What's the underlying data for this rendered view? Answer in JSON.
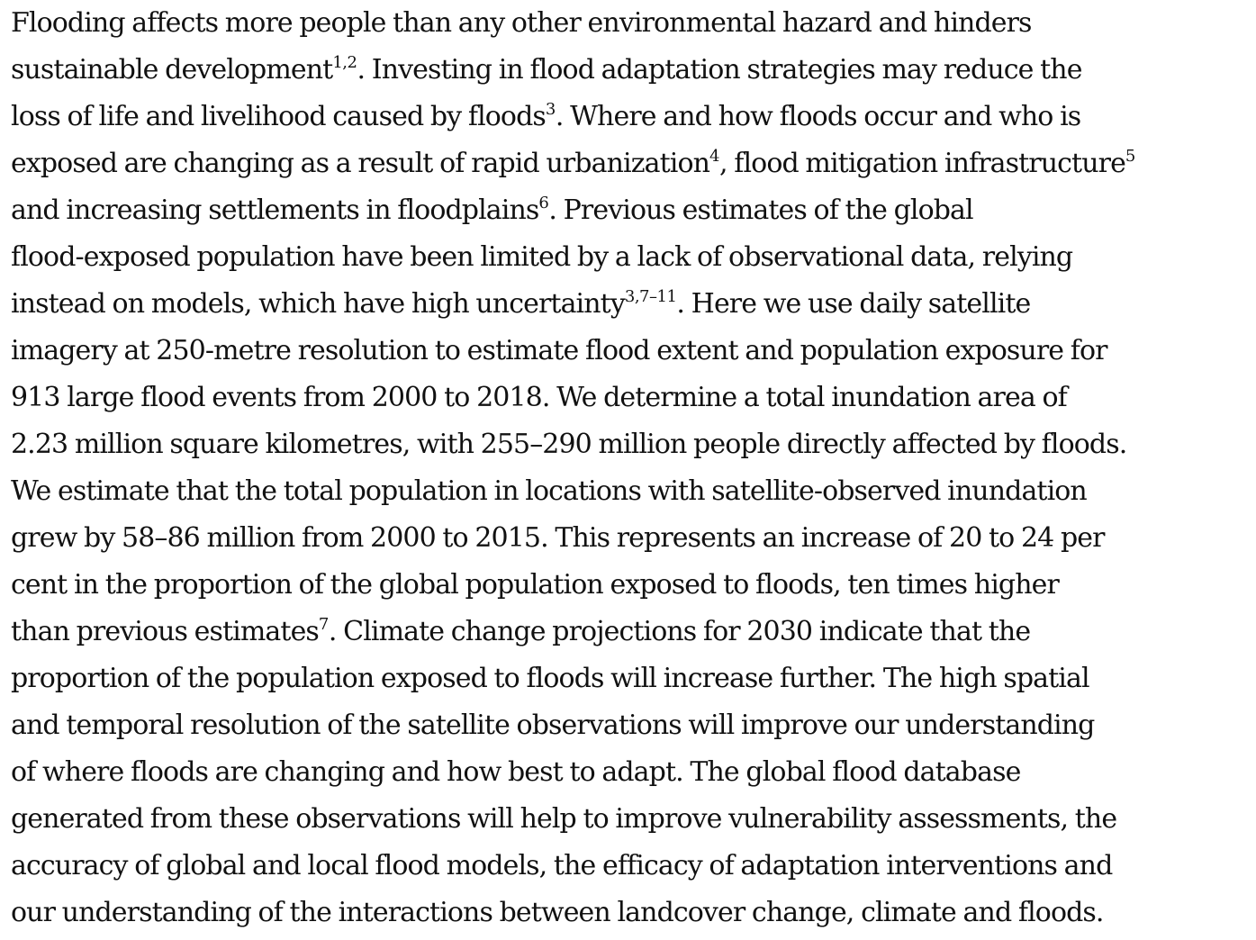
{
  "abstract": {
    "lines": [
      {
        "text": "Flooding affects more people than any other environmental hazard and hinders"
      },
      {
        "text": "sustainable development",
        "sup": "1,2",
        "after": ". Investing in flood adaptation strategies may reduce the"
      },
      {
        "text": "loss of life and livelihood caused by floods",
        "sup": "3",
        "after": ". Where and how floods occur and who is"
      },
      {
        "text": "exposed are changing as a result of rapid urbanization",
        "sup": "4",
        "after": ", flood mitigation infrastructure",
        "sup2": "5"
      },
      {
        "text": "and increasing settlements in floodplains",
        "sup": "6",
        "after": ". Previous estimates of the global"
      },
      {
        "text": "flood-exposed population have been limited by a lack of observational data, relying"
      },
      {
        "text": "instead on models, which have high uncertainty",
        "sup": "3,7–11",
        "after": ". Here we use daily satellite"
      },
      {
        "text": "imagery at 250-metre resolution to estimate flood extent and population exposure for"
      },
      {
        "text": "913 large flood events from 2000 to 2018. We determine a total inundation area of"
      },
      {
        "text": "2.23 million square kilometres, with 255–290 million people directly affected by floods."
      },
      {
        "text": "We estimate that the total population in locations with satellite-observed inundation"
      },
      {
        "text": "grew by 58–86 million from 2000 to 2015. This represents an increase of 20 to 24 per"
      },
      {
        "text": "cent in the proportion of the global population exposed to floods, ten times higher"
      },
      {
        "text": "than previous estimates",
        "sup": "7",
        "after": ". Climate change projections for 2030 indicate that the"
      },
      {
        "text": "proportion of the population exposed to floods will increase further. The high spatial"
      },
      {
        "text": "and temporal resolution of the satellite observations will improve our understanding"
      },
      {
        "text": "of where floods are changing and how best to adapt. The global flood database"
      },
      {
        "text": "generated from these observations will help to improve vulnerability assessments, the"
      },
      {
        "text": "accuracy of global and local flood models, the efficacy of adaptation interventions and"
      },
      {
        "text": "our understanding of the interactions between landcover change, climate and floods."
      }
    ]
  }
}
